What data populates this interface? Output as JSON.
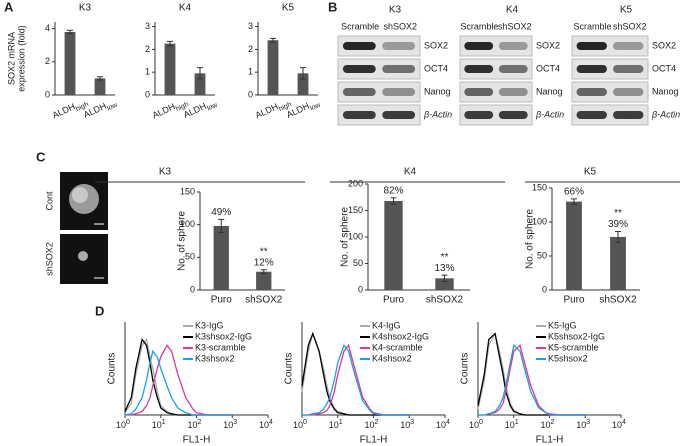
{
  "panels": [
    "A",
    "B",
    "C",
    "D"
  ],
  "blots": [
    {
      "title": "K3",
      "columns": [
        "Scramble",
        "shSOX2"
      ],
      "rows": [
        "SOX2",
        "OCT4",
        "Nanog",
        "β-Actin"
      ]
    },
    {
      "title": "K4",
      "columns": [
        "Scramble",
        "shSOX2"
      ],
      "rows": [
        "SOX2",
        "OCT4",
        "Nanog",
        "β-Actin"
      ]
    },
    {
      "title": "K5",
      "columns": [
        "Scramble",
        "shSOX2"
      ],
      "rows": [
        "SOX2",
        "OCT4",
        "Nanog",
        "β-Actin"
      ]
    }
  ],
  "sphere_images": {
    "labels": [
      "Cont",
      "shSOX2"
    ]
  },
  "chart_data": [
    {
      "type": "bar",
      "title": "K3",
      "ylabel": [
        "SOX2 mRNA",
        "expression (fold)"
      ],
      "categories": [
        "ALDH",
        "ALDH"
      ],
      "category_subscripts": [
        "high",
        "low"
      ],
      "values": [
        3.8,
        1.0
      ],
      "errors": [
        0.1,
        0.1
      ],
      "color": "#555555",
      "ylim": [
        0,
        4.4
      ],
      "yticks": [
        0,
        2,
        4
      ]
    },
    {
      "type": "bar",
      "title": "K4",
      "categories": [
        "ALDH",
        "ALDH"
      ],
      "category_subscripts": [
        "high",
        "low"
      ],
      "values": [
        2.25,
        0.95
      ],
      "errors": [
        0.1,
        0.25
      ],
      "color": "#555555",
      "ylim": [
        0,
        3.2
      ],
      "yticks": [
        0,
        1,
        2,
        3
      ]
    },
    {
      "type": "bar",
      "title": "K5",
      "categories": [
        "ALDH",
        "ALDH"
      ],
      "category_subscripts": [
        "high",
        "low"
      ],
      "values": [
        2.4,
        0.95
      ],
      "errors": [
        0.08,
        0.25
      ],
      "color": "#555555",
      "ylim": [
        0,
        3.2
      ],
      "yticks": [
        0,
        1,
        2,
        3
      ]
    },
    {
      "type": "bar",
      "title": "K3",
      "ylabel": "No. of sphere",
      "categories": [
        "Puro",
        "shSOX2"
      ],
      "values": [
        98,
        28
      ],
      "errors": [
        10,
        3
      ],
      "percent_labels": [
        "49%",
        "12%"
      ],
      "significance": [
        null,
        "**"
      ],
      "color": "#555555",
      "ylim": [
        0,
        150
      ],
      "yticks": [
        0,
        50,
        100,
        150
      ]
    },
    {
      "type": "bar",
      "title": "K4",
      "ylabel": "No. of sphere",
      "categories": [
        "Puro",
        "shSOX2"
      ],
      "values": [
        168,
        22
      ],
      "errors": [
        6,
        6
      ],
      "percent_labels": [
        "82%",
        "13%"
      ],
      "significance": [
        null,
        "**"
      ],
      "color": "#555555",
      "ylim": [
        0,
        200
      ],
      "yticks": [
        0,
        50,
        100,
        150,
        200
      ]
    },
    {
      "type": "bar",
      "title": "K5",
      "ylabel": "No. of sphere",
      "categories": [
        "Puro",
        "shSOX2"
      ],
      "values": [
        130,
        78
      ],
      "errors": [
        4,
        8
      ],
      "percent_labels": [
        "66%",
        "39%"
      ],
      "significance": [
        null,
        "**"
      ],
      "color": "#555555",
      "ylim": [
        0,
        150
      ],
      "yticks": [
        0,
        50,
        100,
        150
      ]
    },
    {
      "type": "line",
      "xlabel": "FL1-H",
      "ylabel": "Counts",
      "log_x": true,
      "xlim": [
        1,
        10000
      ],
      "ylim": [
        0,
        80
      ],
      "xticks": [
        {
          "value": 1,
          "label": "10",
          "exponent": "0"
        },
        {
          "value": 10,
          "label": "10",
          "exponent": "1"
        },
        {
          "value": 100,
          "label": "10",
          "exponent": "2"
        },
        {
          "value": 1000,
          "label": "10",
          "exponent": "3"
        },
        {
          "value": 10000,
          "label": "10",
          "exponent": "4"
        }
      ],
      "x": [
        1,
        1.5,
        2,
        3,
        4,
        5,
        6,
        8,
        10,
        15,
        20,
        30,
        50,
        80,
        100,
        200,
        1000
      ],
      "series": [
        {
          "name": "K3-IgG",
          "color": "#aaaaaa",
          "values": [
            2,
            10,
            35,
            60,
            65,
            50,
            40,
            20,
            8,
            3,
            1,
            0,
            0,
            0,
            0,
            0,
            0
          ]
        },
        {
          "name": "K3shsox2-IgG",
          "color": "#000000",
          "values": [
            3,
            15,
            40,
            65,
            60,
            45,
            30,
            15,
            6,
            2,
            1,
            0,
            0,
            0,
            0,
            0,
            0
          ]
        },
        {
          "name": "K3-scramble",
          "color": "#e0359b",
          "values": [
            0,
            0,
            1,
            3,
            8,
            15,
            25,
            40,
            50,
            60,
            55,
            35,
            15,
            5,
            2,
            0,
            0
          ]
        },
        {
          "name": "K3shsox2",
          "color": "#1e9fe0",
          "values": [
            0,
            1,
            5,
            15,
            30,
            45,
            55,
            50,
            40,
            25,
            15,
            6,
            2,
            0,
            0,
            0,
            0
          ]
        }
      ]
    },
    {
      "type": "line",
      "xlabel": "FL1-H",
      "ylabel": "Counts",
      "log_x": true,
      "xlim": [
        1,
        10000
      ],
      "ylim": [
        0,
        80
      ],
      "xticks": [
        {
          "value": 1,
          "label": "10",
          "exponent": "0"
        },
        {
          "value": 10,
          "label": "10",
          "exponent": "1"
        },
        {
          "value": 100,
          "label": "10",
          "exponent": "2"
        },
        {
          "value": 1000,
          "label": "10",
          "exponent": "3"
        },
        {
          "value": 10000,
          "label": "10",
          "exponent": "4"
        }
      ],
      "x": [
        1,
        1.5,
        2,
        3,
        4,
        5,
        6,
        8,
        10,
        15,
        20,
        30,
        50,
        80,
        100,
        200,
        1000
      ],
      "series": [
        {
          "name": "K4-IgG",
          "color": "#aaaaaa",
          "values": [
            20,
            55,
            70,
            55,
            40,
            25,
            15,
            6,
            3,
            1,
            0,
            0,
            0,
            0,
            0,
            0,
            0
          ]
        },
        {
          "name": "K4shsox2-IgG",
          "color": "#000000",
          "values": [
            25,
            60,
            70,
            55,
            35,
            20,
            12,
            5,
            2,
            1,
            0,
            0,
            0,
            0,
            0,
            0,
            0
          ]
        },
        {
          "name": "K4-scramble",
          "color": "#e0359b",
          "values": [
            0,
            0,
            0,
            1,
            2,
            4,
            8,
            20,
            35,
            55,
            60,
            40,
            15,
            5,
            2,
            0,
            0
          ]
        },
        {
          "name": "K4shsox2",
          "color": "#1e9fe0",
          "values": [
            0,
            0,
            1,
            2,
            5,
            10,
            15,
            30,
            45,
            60,
            55,
            35,
            12,
            4,
            1,
            0,
            0
          ]
        }
      ]
    },
    {
      "type": "line",
      "xlabel": "FL1-H",
      "ylabel": "Counts",
      "log_x": true,
      "xlim": [
        1,
        10000
      ],
      "ylim": [
        0,
        80
      ],
      "xticks": [
        {
          "value": 1,
          "label": "10",
          "exponent": "0"
        },
        {
          "value": 10,
          "label": "10",
          "exponent": "1"
        },
        {
          "value": 100,
          "label": "10",
          "exponent": "2"
        },
        {
          "value": 1000,
          "label": "10",
          "exponent": "3"
        },
        {
          "value": 10000,
          "label": "10",
          "exponent": "4"
        }
      ],
      "x": [
        1,
        1.5,
        2,
        3,
        4,
        5,
        6,
        8,
        10,
        15,
        20,
        30,
        50,
        80,
        100,
        200,
        1000
      ],
      "series": [
        {
          "name": "K5-IgG",
          "color": "#aaaaaa",
          "values": [
            5,
            30,
            60,
            70,
            55,
            40,
            25,
            10,
            4,
            1,
            0,
            0,
            0,
            0,
            0,
            0,
            0
          ]
        },
        {
          "name": "K5shsox2-IgG",
          "color": "#000000",
          "values": [
            8,
            35,
            65,
            70,
            50,
            35,
            20,
            8,
            3,
            1,
            0,
            0,
            0,
            0,
            0,
            0,
            0
          ]
        },
        {
          "name": "K5-scramble",
          "color": "#e0359b",
          "values": [
            0,
            0,
            1,
            2,
            5,
            10,
            20,
            40,
            55,
            60,
            45,
            25,
            8,
            2,
            1,
            0,
            0
          ]
        },
        {
          "name": "K5shsox2",
          "color": "#1e9fe0",
          "values": [
            0,
            0,
            1,
            3,
            8,
            15,
            25,
            45,
            60,
            55,
            40,
            20,
            6,
            2,
            0,
            0,
            0
          ]
        }
      ]
    }
  ]
}
